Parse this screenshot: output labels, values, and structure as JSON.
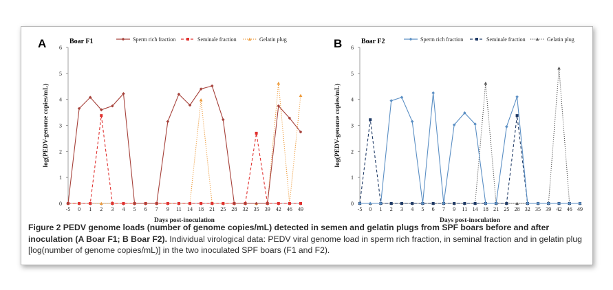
{
  "caption": {
    "bold": "Figure 2  PEDV genome loads (number of genome copies/mL) detected in semen and gelatin plugs from SPF boars before and after inoculation (A Boar F1; B Boar F2).",
    "text": " Individual virological data: PEDV viral genome load in sperm rich fraction, in seminal fraction and in gelatin plug [log(number of genome copies/mL)] in the two inoculated SPF boars (F1 and F2)."
  },
  "chart_data": [
    {
      "panel": "A",
      "title": "Boar F1",
      "type": "line",
      "xlabel": "Days post-inoculation",
      "ylabel": "log(PEDV-genome copies/mL)",
      "ylim": [
        0,
        6
      ],
      "yticks": [
        0,
        1,
        2,
        3,
        4,
        5,
        6
      ],
      "grid": false,
      "legend": "top",
      "categories": [
        "-5",
        "0",
        "1",
        "2",
        "3",
        "4",
        "5",
        "6",
        "7",
        "9",
        "11",
        "14",
        "18",
        "21",
        "25",
        "28",
        "32",
        "35",
        "39",
        "42",
        "46",
        "49"
      ],
      "series": [
        {
          "name": "Sperm rich fraction",
          "color": "#a6423b",
          "style": "solid",
          "marker": "diamond",
          "values": [
            0,
            3.65,
            4.08,
            3.6,
            3.75,
            4.22,
            0,
            0,
            0,
            3.15,
            4.2,
            3.78,
            4.4,
            4.52,
            3.22,
            0,
            0,
            0,
            0,
            3.75,
            3.28,
            2.75
          ]
        },
        {
          "name": "Seminale fraction",
          "color": "#e0312f",
          "style": "dashed",
          "marker": "square",
          "values": [
            0,
            0,
            0,
            3.38,
            0,
            0,
            0,
            0,
            0,
            0,
            0,
            0,
            0,
            0,
            0,
            0,
            0,
            2.7,
            0,
            0,
            0,
            0
          ]
        },
        {
          "name": "Gelatin plug",
          "color": "#ed9a3a",
          "style": "dotted",
          "marker": "triangle",
          "values": [
            0,
            0,
            0,
            0,
            0,
            0,
            0,
            0,
            0,
            0,
            0,
            0,
            3.98,
            0,
            0,
            0,
            0,
            0,
            0,
            4.62,
            0,
            4.15
          ]
        }
      ]
    },
    {
      "panel": "B",
      "title": "Boar F2",
      "type": "line",
      "xlabel": "Days post-inoculation",
      "ylabel": "log(PEDV-genome copies/mL)",
      "ylim": [
        0,
        6
      ],
      "yticks": [
        0,
        1,
        2,
        3,
        4,
        5,
        6
      ],
      "grid": false,
      "legend": "top",
      "categories": [
        "-5",
        "0",
        "1",
        "2",
        "3",
        "4",
        "5",
        "6",
        "7",
        "9",
        "11",
        "14",
        "18",
        "21",
        "25",
        "28",
        "32",
        "35",
        "39",
        "42",
        "46",
        "49"
      ],
      "series": [
        {
          "name": "Sperm rich fraction",
          "color": "#5b8fc4",
          "style": "solid",
          "marker": "diamond",
          "values": [
            0,
            0,
            0,
            3.95,
            4.08,
            3.15,
            0,
            4.25,
            0,
            3.02,
            3.48,
            3.05,
            0,
            0,
            2.95,
            4.1,
            0,
            0,
            0,
            0,
            0,
            0
          ]
        },
        {
          "name": "Seminale fraction",
          "color": "#1f3a66",
          "style": "dashed",
          "marker": "square",
          "values": [
            0,
            3.22,
            0,
            0,
            0,
            0,
            0,
            0,
            0,
            0,
            0,
            0,
            0,
            0,
            0,
            3.38,
            0,
            0,
            0,
            0,
            0,
            0
          ]
        },
        {
          "name": "Gelatin plug",
          "color": "#555555",
          "style": "dotted",
          "marker": "triangle",
          "values": [
            0,
            0,
            0,
            0,
            0,
            0,
            0,
            0,
            0,
            0,
            0,
            0,
            4.62,
            0,
            0,
            0,
            0,
            0,
            0,
            5.2,
            0,
            0
          ]
        }
      ]
    }
  ]
}
